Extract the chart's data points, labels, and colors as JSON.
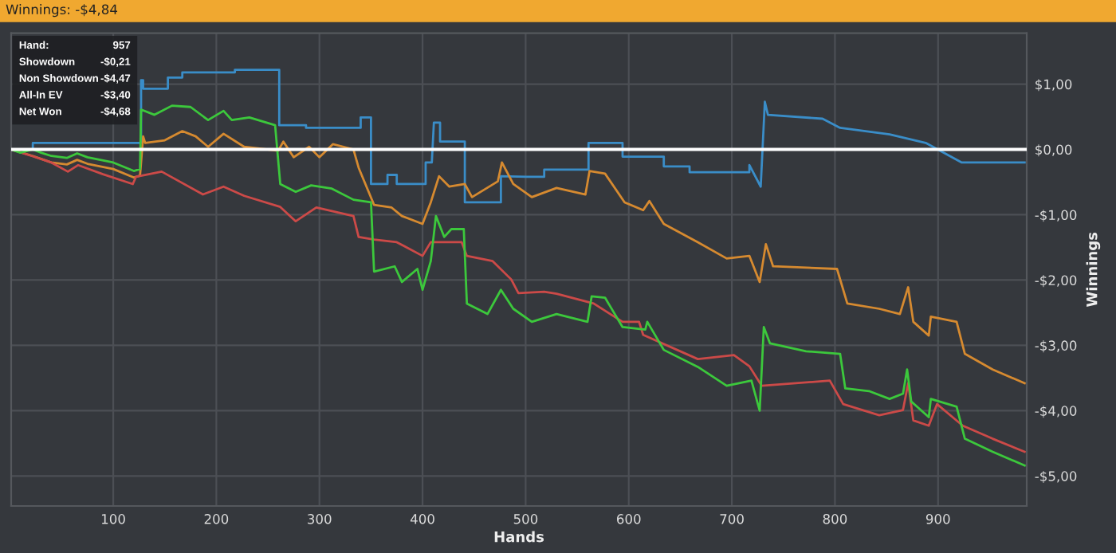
{
  "chart_data": {
    "type": "line",
    "title": "Winnings: -$4,84",
    "xlabel": "Hands",
    "ylabel": "Winnings",
    "xlim": [
      1,
      986
    ],
    "ylim": [
      -5.46,
      1.78
    ],
    "xticks": [
      100,
      200,
      300,
      400,
      500,
      600,
      700,
      800,
      900
    ],
    "yticks": [
      {
        "value": 1,
        "label": "$1,00"
      },
      {
        "value": 0,
        "label": "$0,00"
      },
      {
        "value": -1,
        "label": "-$1,00"
      },
      {
        "value": -2,
        "label": "-$2,00"
      },
      {
        "value": -3,
        "label": "-$3,00"
      },
      {
        "value": -4,
        "label": "-$4,00"
      },
      {
        "value": -5,
        "label": "-$5,00"
      }
    ],
    "grid": true,
    "legend": false,
    "ref_lines": [
      {
        "axis": "y",
        "value": 0,
        "color": "#ffffff"
      }
    ],
    "annotations": [
      "Hand:",
      "957",
      "Showdown",
      "-$0,21",
      "Non Showdown",
      "-$4,47",
      "All-In EV",
      "-$3,40",
      "Net Won",
      "-$4,68"
    ],
    "series": [
      {
        "color": "#3a8dc8",
        "x": [
          1,
          22,
          22,
          127,
          127,
          129,
          129,
          153,
          153,
          167,
          167,
          218,
          218,
          261,
          261,
          287,
          287,
          340,
          340,
          350,
          350,
          366,
          366,
          375,
          375,
          403,
          403,
          409,
          411,
          417,
          417,
          441,
          441,
          476,
          476,
          501,
          518,
          518,
          561,
          561,
          594,
          594,
          634,
          634,
          659,
          659,
          717,
          717,
          728,
          732,
          735,
          735,
          788,
          788,
          805,
          805,
          853,
          853,
          888,
          888,
          923,
          923,
          984
        ],
        "values": [
          0,
          0,
          0.1,
          0.1,
          1.06,
          1.06,
          0.93,
          0.93,
          1.1,
          1.1,
          1.18,
          1.18,
          1.22,
          1.22,
          0.37,
          0.37,
          0.33,
          0.33,
          0.49,
          0.49,
          -0.53,
          -0.53,
          -0.39,
          -0.39,
          -0.53,
          -0.53,
          -0.2,
          -0.2,
          0.41,
          0.41,
          0.12,
          0.12,
          -0.81,
          -0.81,
          -0.41,
          -0.42,
          -0.42,
          -0.31,
          -0.31,
          0.1,
          0.1,
          -0.11,
          -0.11,
          -0.26,
          -0.26,
          -0.35,
          -0.35,
          -0.24,
          -0.57,
          0.73,
          0.53,
          0.53,
          0.47,
          0.47,
          0.33,
          0.33,
          0.23,
          0.23,
          0.1,
          0.1,
          -0.2,
          -0.2,
          -0.2
        ]
      },
      {
        "color": "#d68a30",
        "x": [
          1,
          22,
          40,
          55,
          65,
          75,
          100,
          120,
          126,
          129,
          131,
          150,
          167,
          180,
          192,
          207,
          227,
          260,
          265,
          275,
          290,
          300,
          313,
          333,
          338,
          353,
          370,
          380,
          400,
          408,
          416,
          426,
          441,
          448,
          473,
          477,
          488,
          506,
          530,
          558,
          562,
          577,
          596,
          614,
          620,
          634,
          667,
          695,
          717,
          727,
          733,
          740,
          802,
          812,
          843,
          863,
          871,
          876,
          891,
          893,
          918,
          926,
          953,
          984
        ],
        "values": [
          0,
          -0.1,
          -0.2,
          -0.23,
          -0.16,
          -0.22,
          -0.3,
          -0.43,
          -0.4,
          0.2,
          0.1,
          0.14,
          0.28,
          0.2,
          0.04,
          0.24,
          0.04,
          -0.02,
          0.12,
          -0.12,
          0.04,
          -0.12,
          0.08,
          0.0,
          -0.28,
          -0.85,
          -0.89,
          -1.02,
          -1.14,
          -0.81,
          -0.41,
          -0.57,
          -0.53,
          -0.73,
          -0.49,
          -0.2,
          -0.53,
          -0.73,
          -0.59,
          -0.69,
          -0.33,
          -0.37,
          -0.81,
          -0.93,
          -0.79,
          -1.14,
          -1.42,
          -1.67,
          -1.63,
          -2.03,
          -1.45,
          -1.79,
          -1.83,
          -2.36,
          -2.44,
          -2.52,
          -2.11,
          -2.64,
          -2.85,
          -2.56,
          -2.64,
          -3.13,
          -3.37,
          -3.58
        ]
      },
      {
        "color": "#cc4a48",
        "x": [
          1,
          21,
          40,
          56,
          66,
          90,
          119,
          122,
          147,
          187,
          207,
          227,
          262,
          277,
          297,
          333,
          338,
          353,
          375,
          400,
          408,
          438,
          443,
          468,
          486,
          493,
          518,
          530,
          566,
          594,
          610,
          614,
          667,
          702,
          717,
          729,
          762,
          795,
          808,
          843,
          866,
          871,
          876,
          891,
          899,
          924,
          953,
          984
        ],
        "values": [
          0,
          -0.1,
          -0.2,
          -0.34,
          -0.24,
          -0.38,
          -0.53,
          -0.42,
          -0.34,
          -0.69,
          -0.57,
          -0.71,
          -0.88,
          -1.1,
          -0.89,
          -1.02,
          -1.34,
          -1.38,
          -1.42,
          -1.63,
          -1.42,
          -1.42,
          -1.63,
          -1.71,
          -1.99,
          -2.2,
          -2.18,
          -2.21,
          -2.36,
          -2.64,
          -2.64,
          -2.84,
          -3.21,
          -3.15,
          -3.32,
          -3.62,
          -3.58,
          -3.54,
          -3.9,
          -4.07,
          -3.99,
          -3.58,
          -4.15,
          -4.23,
          -3.9,
          -4.23,
          -4.43,
          -4.63
        ]
      },
      {
        "color": "#3cc83c",
        "x": [
          1,
          10,
          22,
          30,
          40,
          55,
          65,
          75,
          100,
          120,
          126,
          127,
          140,
          157,
          175,
          192,
          207,
          215,
          232,
          257,
          262,
          277,
          292,
          312,
          333,
          350,
          353,
          373,
          380,
          395,
          400,
          408,
          413,
          421,
          428,
          440,
          443,
          463,
          476,
          488,
          506,
          530,
          560,
          564,
          577,
          594,
          616,
          618,
          634,
          667,
          695,
          719,
          727,
          731,
          737,
          772,
          805,
          810,
          833,
          853,
          866,
          870,
          874,
          891,
          893,
          918,
          926,
          953,
          984
        ],
        "values": [
          0,
          -0.05,
          0,
          -0.05,
          -0.1,
          -0.13,
          -0.06,
          -0.12,
          -0.2,
          -0.33,
          -0.3,
          0.61,
          0.53,
          0.67,
          0.65,
          0.45,
          0.59,
          0.45,
          0.49,
          0.37,
          -0.53,
          -0.65,
          -0.55,
          -0.6,
          -0.77,
          -0.81,
          -1.87,
          -1.79,
          -2.03,
          -1.83,
          -2.15,
          -1.71,
          -1.02,
          -1.34,
          -1.22,
          -1.22,
          -2.36,
          -2.52,
          -2.15,
          -2.44,
          -2.64,
          -2.52,
          -2.64,
          -2.25,
          -2.27,
          -2.72,
          -2.76,
          -2.64,
          -3.07,
          -3.33,
          -3.62,
          -3.54,
          -4.0,
          -2.72,
          -2.97,
          -3.09,
          -3.13,
          -3.66,
          -3.7,
          -3.82,
          -3.74,
          -3.37,
          -3.86,
          -4.1,
          -3.82,
          -3.94,
          -4.43,
          -4.63,
          -4.84
        ]
      }
    ]
  }
}
